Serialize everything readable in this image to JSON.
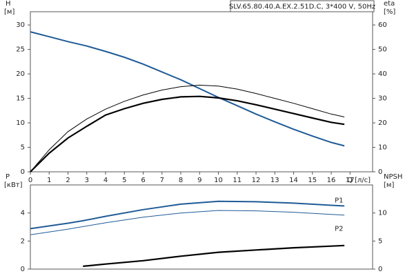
{
  "chart_data": [
    {
      "type": "line",
      "title": "SLV.65.80.40.A.EX.2.51D.C, 3*400 V, 50Hz",
      "ylabel": "H",
      "yunit": "[м]",
      "y2label": "eta",
      "y2unit": "[%]",
      "xlabel": "Q [л/с]",
      "x": [
        0,
        1,
        2,
        3,
        4,
        5,
        6,
        7,
        8,
        9,
        10,
        11,
        12,
        13,
        14,
        15,
        16,
        16.7
      ],
      "xlim": [
        0,
        18.2
      ],
      "xticks": [
        0,
        1,
        2,
        3,
        4,
        5,
        6,
        7,
        8,
        9,
        10,
        11,
        12,
        13,
        14,
        15,
        16,
        17
      ],
      "ylim": [
        0,
        32.7
      ],
      "yticks": [
        0,
        5,
        10,
        15,
        20,
        25,
        30
      ],
      "y2lim": [
        0,
        65.4
      ],
      "y2ticks": [
        0,
        10,
        20,
        30,
        40,
        50,
        60
      ],
      "series": [
        {
          "color": "#1f5a96",
          "width": 2,
          "values": [
            28.6,
            27.6,
            26.6,
            25.7,
            24.6,
            23.4,
            22.0,
            20.4,
            18.8,
            17.0,
            15.2,
            13.5,
            11.8,
            10.2,
            8.7,
            7.3,
            6.0,
            5.3
          ]
        },
        {
          "color": "#000000",
          "width": 1,
          "axis": "y2",
          "values": [
            0,
            9,
            16.4,
            21.6,
            25.6,
            28.8,
            31.4,
            33.4,
            34.8,
            35.4,
            35,
            33.8,
            32,
            30,
            28,
            25.8,
            23.6,
            22.4
          ]
        },
        {
          "color": "#000000",
          "width": 2.2,
          "axis": "y2",
          "values": [
            0,
            7.6,
            13.8,
            18.6,
            23.2,
            25.8,
            28,
            29.6,
            30.6,
            30.8,
            30.2,
            29,
            27.4,
            25.6,
            23.8,
            22,
            20.2,
            19.4
          ]
        }
      ]
    },
    {
      "type": "line",
      "ylabel": "P",
      "yunit": "[кВт]",
      "y2label": "NPSH",
      "y2unit": "[м]",
      "x": [
        0,
        2,
        2.8,
        4,
        6,
        8,
        10,
        12,
        14,
        16,
        16.7
      ],
      "xlim": [
        0,
        18.2
      ],
      "ylim": [
        0,
        6
      ],
      "yticks": [
        0,
        2,
        4
      ],
      "y2lim": [
        0,
        15
      ],
      "y2ticks": [
        0,
        5,
        10
      ],
      "series": [
        {
          "name": "P1",
          "color": "#1f5a96",
          "width": 2,
          "values": [
            2.88,
            3.27,
            3.45,
            3.76,
            4.24,
            4.63,
            4.83,
            4.8,
            4.7,
            4.55,
            4.5
          ]
        },
        {
          "name": "P2",
          "color": "#1f5a96",
          "width": 1,
          "values": [
            2.45,
            2.85,
            3.03,
            3.3,
            3.7,
            4.0,
            4.18,
            4.15,
            4.05,
            3.9,
            3.85
          ]
        },
        {
          "color": "#000000",
          "width": 2.2,
          "axis": "y2",
          "values": [
            null,
            null,
            0.5,
            0.9,
            1.5,
            2.3,
            3.0,
            3.4,
            3.8,
            4.1,
            4.2
          ]
        }
      ]
    }
  ]
}
